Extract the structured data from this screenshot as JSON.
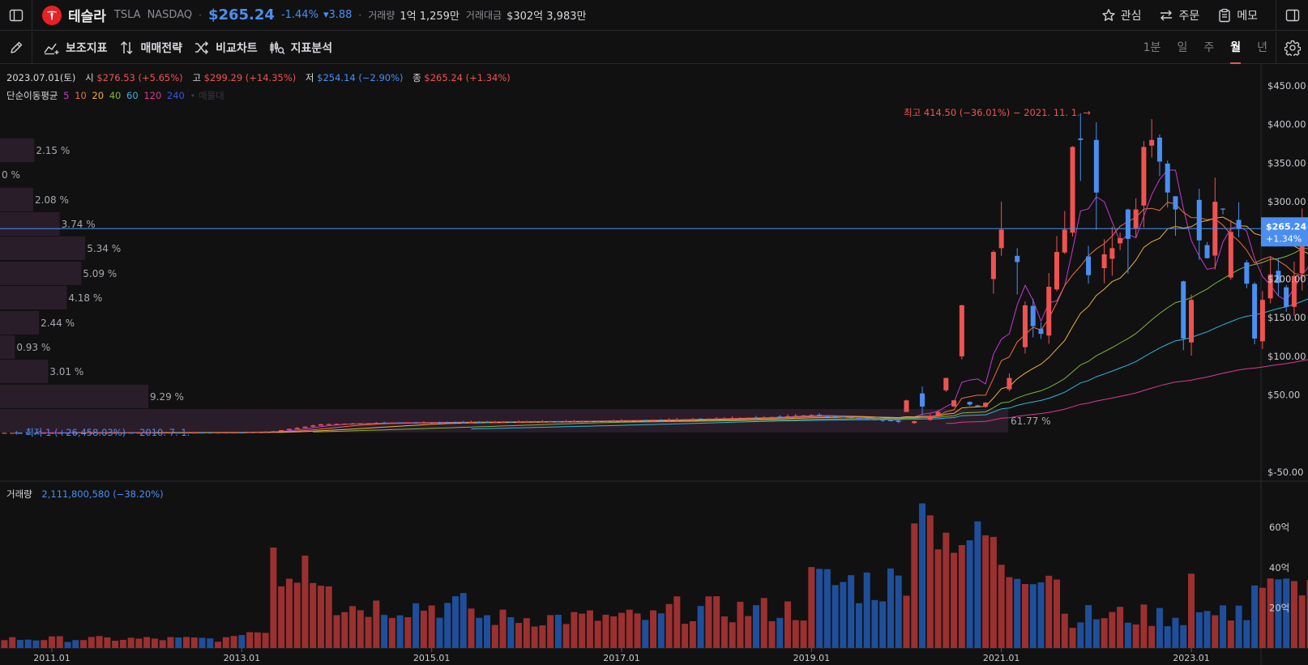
{
  "header": {
    "name": "테슬라",
    "ticker": "TSLA",
    "exchange": "NASDAQ",
    "price": "$265.24",
    "change_pct": "-1.44%",
    "change": "▾3.88",
    "volume_label": "거래량",
    "volume_value": "1억 1,259만",
    "amount_label": "거래대금",
    "amount_value": "$302억 3,983만",
    "watch_label": "관심",
    "order_label": "주문",
    "memo_label": "메모"
  },
  "toolbar": {
    "indicator_label": "보조지표",
    "strategy_label": "매매전략",
    "compare_label": "비교차트",
    "analysis_label": "지표분석",
    "periods": [
      "1분",
      "일",
      "주",
      "월",
      "년"
    ],
    "active_period": "월"
  },
  "ohlc": {
    "date": "2023.07.01(토)",
    "open_label": "시",
    "open": "$276.53 (+5.65%)",
    "high_label": "고",
    "high": "$299.29 (+14.35%)",
    "low_label": "저",
    "low": "$254.14 (−2.90%)",
    "close_label": "종",
    "close": "$265.24 (+1.34%)"
  },
  "ma_legend": {
    "label": "단순이동평균",
    "periods": [
      {
        "text": "5",
        "color": "#c43bd0"
      },
      {
        "text": "10",
        "color": "#ef6c3a"
      },
      {
        "text": "20",
        "color": "#e8b23a"
      },
      {
        "text": "40",
        "color": "#7fb53a"
      },
      {
        "text": "60",
        "color": "#2fb5d8"
      },
      {
        "text": "120",
        "color": "#d83a8f"
      },
      {
        "text": "240",
        "color": "#3a54d8"
      }
    ],
    "extra": "• 매물대"
  },
  "annotations": {
    "high": "최고 414.50 (−36.01%) − 2021. 11. 1. →",
    "low": "← 최저 1 (+26,458.03%) − 2010. 7. 1."
  },
  "price_axis": {
    "ticks": [
      "$450.00",
      "$400.00",
      "$350.00",
      "$300.00",
      "$200.00",
      "$150.00",
      "$100.00",
      "$50.00",
      "$-50.00"
    ],
    "current_label": "$265.24",
    "current_change": "+1.34%"
  },
  "volume_profile": [
    "2.15 %",
    "0 %",
    "2.08 %",
    "3.74 %",
    "5.34 %",
    "5.09 %",
    "4.18 %",
    "2.44 %",
    "0.93 %",
    "3.01 %",
    "9.29 %",
    "61.77 %"
  ],
  "volume": {
    "label": "거래량",
    "value": "2,111,800,580 (−38.20%)",
    "axis_ticks": [
      "60억",
      "40억",
      "20억"
    ]
  },
  "time_axis": [
    "2011.01",
    "2013.01",
    "2015.01",
    "2017.01",
    "2019.01",
    "2021.01",
    "2023.01"
  ],
  "colors": {
    "up": "#ef5350",
    "down": "#4a8ff0",
    "vol_up": "#9b3030",
    "vol_down": "#1f4f9a",
    "profile": "#2a1d2a",
    "current_line": "#4a8ff0"
  },
  "chart_data": [
    {
      "type": "candlestick",
      "title": "",
      "interval": "monthly",
      "x_range": [
        "2010-07",
        "2023-07"
      ],
      "ylim": [
        -50,
        470
      ],
      "candles_recent": [
        {
          "x": "2020-01",
          "o": 28,
          "h": 44,
          "l": 28,
          "c": 43
        },
        {
          "x": "2020-03",
          "o": 52,
          "h": 61,
          "l": 24,
          "c": 35
        },
        {
          "x": "2020-06",
          "o": 56,
          "h": 72,
          "l": 54,
          "c": 72
        },
        {
          "x": "2020-08",
          "o": 100,
          "h": 167,
          "l": 96,
          "c": 166
        },
        {
          "x": "2020-12",
          "o": 200,
          "h": 237,
          "l": 181,
          "c": 235
        },
        {
          "x": "2021-01",
          "o": 240,
          "h": 300,
          "l": 230,
          "c": 264
        },
        {
          "x": "2021-03",
          "o": 230,
          "h": 240,
          "l": 180,
          "c": 222
        },
        {
          "x": "2021-10",
          "o": 260,
          "h": 372,
          "l": 255,
          "c": 371
        },
        {
          "x": "2021-11",
          "o": 382,
          "h": 414.5,
          "l": 327,
          "c": 380
        },
        {
          "x": "2022-01",
          "o": 380,
          "h": 403,
          "l": 264,
          "c": 312
        },
        {
          "x": "2022-05",
          "o": 290,
          "h": 291,
          "l": 207,
          "c": 252
        },
        {
          "x": "2022-12",
          "o": 197,
          "h": 198,
          "l": 108,
          "c": 123
        },
        {
          "x": "2023-01",
          "o": 118,
          "h": 180,
          "l": 101,
          "c": 173
        },
        {
          "x": "2023-06",
          "o": 202,
          "h": 276,
          "l": 199,
          "c": 261
        },
        {
          "x": "2023-07",
          "o": 276.53,
          "h": 299.29,
          "l": 254.14,
          "c": 265.24
        }
      ],
      "annotations": [
        {
          "label": "high",
          "x": "2021-11",
          "y": 414.5
        },
        {
          "label": "low",
          "x": "2010-07",
          "y": 1
        }
      ]
    },
    {
      "type": "bar",
      "title": "",
      "interval": "monthly",
      "unit": "억",
      "ylim": [
        0,
        75
      ],
      "bars": [
        {
          "x": "2013-05",
          "value": 50
        },
        {
          "x": "2013-09",
          "value": 46
        },
        {
          "x": "2020-02",
          "value": 62
        },
        {
          "x": "2020-03",
          "value": 72
        },
        {
          "x": "2020-04",
          "value": 66
        },
        {
          "x": "2023-01",
          "value": 37
        },
        {
          "x": "2023-07",
          "value": 21.1
        }
      ]
    }
  ]
}
